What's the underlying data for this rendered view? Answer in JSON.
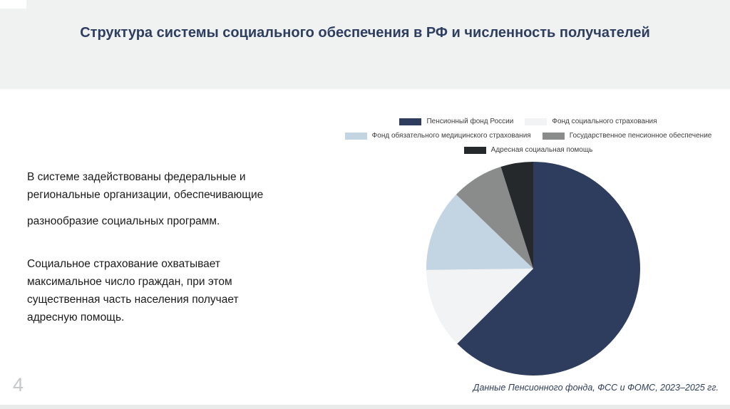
{
  "slide": {
    "title": "Структура системы социального обеспечения в РФ и численность получателей",
    "page_number": "4",
    "source": "Данные Пенсионного фонда, ФСС и ФОМС, 2023–2025 гг.",
    "body": {
      "para1": "В системе задействованы федеральные и\nрегиональные организации, обеспечивающие",
      "para2": "разнообразие социальных программ.",
      "para3": "Социальное страхование охватывает\nмаксимальное число граждан, при этом\nсущественная часть населения получает\nадресную помощь."
    },
    "colors": {
      "title_text": "#2d3e60",
      "header_background": "#f0f1f1",
      "body_text": "#1b1b1b",
      "page_number": "#c6c7c9",
      "source_text": "#2e3d5e",
      "bottom_strip": "#e9eaea"
    }
  },
  "chart_data": {
    "type": "pie",
    "title": "",
    "labels": [
      "Пенсионный фонд России",
      "Фонд социального страхования",
      "Фонд обязательного медицинского страхования",
      "Государственное пенсионное обеспечение",
      "Адресная социальная помощь"
    ],
    "values": [
      62.6,
      12.2,
      12.4,
      7.9,
      4.9
    ],
    "unit": "percent-of-circle (estimated from slice angles; no numeric labels shown)",
    "colors": [
      "#2e3d5e",
      "#f1f3f4",
      "#c3d4e2",
      "#8a8b8b",
      "#26292c"
    ],
    "start_angle_deg": 0,
    "direction": "clockwise",
    "legend_position": "top",
    "legend_rows": [
      [
        0,
        1
      ],
      [
        2,
        3
      ],
      [
        4
      ]
    ]
  }
}
